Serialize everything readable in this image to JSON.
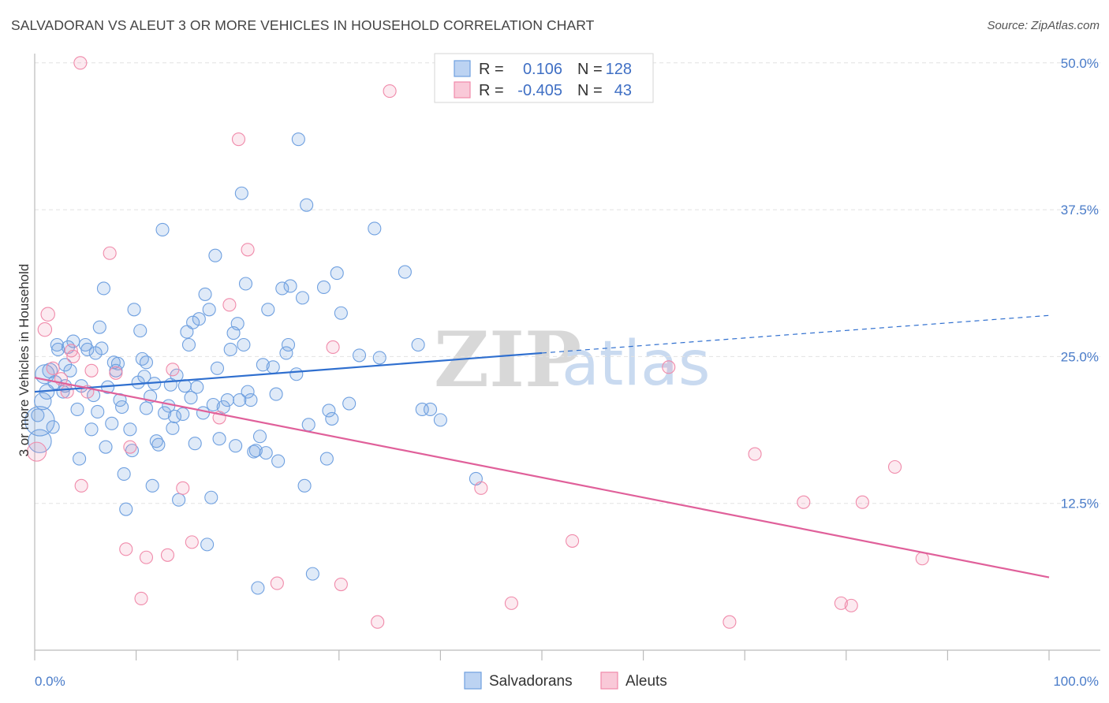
{
  "header": {
    "title": "SALVADORAN VS ALEUT 3 OR MORE VEHICLES IN HOUSEHOLD CORRELATION CHART",
    "source": "Source: ZipAtlas.com"
  },
  "legend": {
    "rows": [
      {
        "r_label": "R =",
        "r_value": "0.106",
        "n_label": "N =",
        "n_value": "128"
      },
      {
        "r_label": "R =",
        "r_value": "-0.405",
        "n_label": "N =",
        "n_value": "43"
      }
    ]
  },
  "watermark": {
    "part1": "ZIP",
    "part2": "atlas"
  },
  "chart_data": {
    "type": "scatter",
    "title": "SALVADORAN VS ALEUT 3 OR MORE VEHICLES IN HOUSEHOLD CORRELATION CHART",
    "xlabel": "",
    "ylabel": "3 or more Vehicles in Household",
    "xlim": [
      0,
      100
    ],
    "ylim": [
      0,
      52
    ],
    "x_tick_labels": [
      "0.0%",
      "100.0%"
    ],
    "y_ticks": [
      12.5,
      25.0,
      37.5,
      50.0
    ],
    "y_tick_labels": [
      "12.5%",
      "25.0%",
      "37.5%",
      "50.0%"
    ],
    "grid": true,
    "legend_position": "top-center",
    "colors": {
      "Salvadorans": "#6fa0e0",
      "Aleuts": "#f08aaa",
      "blue_line": "#2f6fcf",
      "pink_line": "#e0609a"
    },
    "series": [
      {
        "name": "Salvadorans",
        "trend": {
          "x0": 0,
          "y0": 22.0,
          "x1": 50,
          "y1": 25.3,
          "dashed_to_x": 100,
          "dashed_to_y": 28.5
        },
        "points": [
          [
            0.5,
            19.5
          ],
          [
            0.5,
            17.8
          ],
          [
            0.8,
            21.2
          ],
          [
            1.0,
            23.5
          ],
          [
            1.2,
            22.0
          ],
          [
            1.5,
            23.8
          ],
          [
            1.8,
            19.0
          ],
          [
            2.0,
            22.8
          ],
          [
            2.2,
            26.0
          ],
          [
            2.3,
            25.6
          ],
          [
            2.8,
            22.0
          ],
          [
            3.0,
            24.3
          ],
          [
            3.3,
            25.8
          ],
          [
            3.5,
            23.8
          ],
          [
            3.8,
            26.3
          ],
          [
            4.2,
            20.5
          ],
          [
            4.4,
            16.3
          ],
          [
            4.6,
            22.5
          ],
          [
            5.0,
            26.0
          ],
          [
            5.2,
            25.6
          ],
          [
            5.6,
            18.8
          ],
          [
            5.8,
            21.7
          ],
          [
            6.0,
            25.3
          ],
          [
            6.2,
            20.3
          ],
          [
            6.4,
            27.5
          ],
          [
            6.6,
            25.7
          ],
          [
            6.8,
            30.8
          ],
          [
            7.0,
            17.3
          ],
          [
            7.2,
            22.4
          ],
          [
            7.6,
            19.3
          ],
          [
            7.8,
            24.5
          ],
          [
            8.0,
            23.8
          ],
          [
            8.2,
            24.4
          ],
          [
            8.4,
            21.3
          ],
          [
            8.6,
            20.7
          ],
          [
            8.8,
            15.0
          ],
          [
            9.0,
            12.0
          ],
          [
            9.4,
            18.8
          ],
          [
            9.6,
            17.0
          ],
          [
            9.8,
            29.0
          ],
          [
            10.2,
            22.8
          ],
          [
            10.4,
            27.2
          ],
          [
            10.6,
            24.8
          ],
          [
            10.8,
            23.3
          ],
          [
            11.0,
            24.5
          ],
          [
            11.4,
            21.6
          ],
          [
            11.6,
            14.0
          ],
          [
            11.8,
            22.7
          ],
          [
            12.0,
            17.8
          ],
          [
            12.2,
            17.5
          ],
          [
            12.6,
            35.8
          ],
          [
            12.8,
            20.2
          ],
          [
            13.2,
            20.8
          ],
          [
            13.4,
            22.6
          ],
          [
            13.6,
            18.9
          ],
          [
            13.8,
            19.9
          ],
          [
            14.0,
            23.4
          ],
          [
            14.2,
            12.8
          ],
          [
            14.6,
            20.1
          ],
          [
            14.8,
            22.5
          ],
          [
            15.0,
            27.1
          ],
          [
            15.2,
            26.0
          ],
          [
            15.4,
            21.5
          ],
          [
            15.6,
            27.9
          ],
          [
            15.8,
            17.6
          ],
          [
            16.0,
            22.4
          ],
          [
            16.2,
            28.2
          ],
          [
            16.6,
            20.2
          ],
          [
            16.8,
            30.3
          ],
          [
            17.0,
            9.0
          ],
          [
            17.2,
            29.0
          ],
          [
            17.4,
            13.0
          ],
          [
            17.6,
            20.9
          ],
          [
            17.8,
            33.6
          ],
          [
            18.0,
            24.0
          ],
          [
            18.2,
            18.0
          ],
          [
            18.6,
            20.7
          ],
          [
            19.0,
            21.3
          ],
          [
            19.3,
            25.6
          ],
          [
            19.6,
            27.0
          ],
          [
            19.8,
            17.4
          ],
          [
            20.0,
            27.8
          ],
          [
            20.2,
            21.3
          ],
          [
            20.4,
            38.9
          ],
          [
            20.6,
            26.0
          ],
          [
            20.8,
            31.2
          ],
          [
            21.0,
            22.0
          ],
          [
            21.3,
            21.3
          ],
          [
            21.6,
            16.9
          ],
          [
            21.8,
            17.0
          ],
          [
            22.0,
            5.3
          ],
          [
            22.2,
            18.2
          ],
          [
            22.5,
            24.3
          ],
          [
            22.8,
            16.8
          ],
          [
            23.0,
            29.0
          ],
          [
            23.5,
            24.1
          ],
          [
            23.8,
            21.8
          ],
          [
            24.0,
            16.1
          ],
          [
            24.4,
            30.8
          ],
          [
            24.8,
            25.3
          ],
          [
            25.0,
            26.0
          ],
          [
            25.2,
            31.0
          ],
          [
            25.8,
            23.5
          ],
          [
            26.0,
            43.5
          ],
          [
            26.4,
            30.0
          ],
          [
            26.6,
            14.0
          ],
          [
            26.8,
            37.9
          ],
          [
            27.0,
            19.2
          ],
          [
            27.4,
            6.5
          ],
          [
            28.5,
            30.9
          ],
          [
            28.8,
            16.3
          ],
          [
            29.0,
            20.4
          ],
          [
            29.3,
            19.7
          ],
          [
            29.8,
            32.1
          ],
          [
            30.2,
            28.7
          ],
          [
            31.0,
            21.0
          ],
          [
            32.0,
            25.1
          ],
          [
            33.5,
            35.9
          ],
          [
            34.0,
            24.9
          ],
          [
            36.5,
            32.2
          ],
          [
            37.8,
            26.0
          ],
          [
            38.2,
            20.5
          ],
          [
            39.0,
            20.5
          ],
          [
            40.0,
            19.6
          ],
          [
            43.5,
            14.6
          ],
          [
            0.3,
            20.0
          ],
          [
            3.0,
            22.5
          ],
          [
            11.0,
            20.6
          ]
        ],
        "sizes": [
          28,
          22,
          16,
          18,
          14,
          14,
          12,
          13,
          12,
          12,
          12,
          12,
          12,
          12,
          12,
          12,
          12,
          12,
          12,
          12,
          12,
          12,
          12,
          12,
          12,
          12,
          12,
          12,
          12,
          12,
          12,
          12,
          12,
          12,
          12,
          12,
          12,
          12,
          12,
          12,
          12,
          12,
          12,
          12,
          12,
          12,
          12,
          12,
          12,
          12,
          12,
          12,
          12,
          12,
          12,
          12,
          12,
          12,
          12,
          12,
          12,
          12,
          12,
          12,
          12,
          12,
          12,
          12,
          12,
          12,
          12,
          12,
          12,
          12,
          12,
          12,
          12,
          12,
          12,
          12,
          12,
          12,
          12,
          12,
          12,
          12,
          12,
          12,
          12,
          12,
          12,
          12,
          12,
          12,
          12,
          12,
          12,
          12,
          12,
          12,
          12,
          12,
          12,
          12,
          12,
          12,
          12,
          12,
          12,
          12,
          12,
          12,
          12,
          12,
          12,
          12,
          12,
          12,
          12,
          12,
          12,
          12,
          12,
          12,
          12,
          12,
          12,
          12
        ]
      },
      {
        "name": "Aleuts",
        "trend": {
          "x0": 0,
          "y0": 23.2,
          "x1": 100,
          "y1": 6.2
        },
        "points": [
          [
            0.2,
            16.9
          ],
          [
            1.0,
            27.3
          ],
          [
            1.3,
            28.6
          ],
          [
            1.8,
            24.0
          ],
          [
            2.6,
            23.1
          ],
          [
            3.2,
            22.0
          ],
          [
            3.6,
            25.5
          ],
          [
            3.8,
            25.0
          ],
          [
            4.6,
            14.0
          ],
          [
            5.6,
            23.8
          ],
          [
            5.2,
            22.0
          ],
          [
            7.4,
            33.8
          ],
          [
            8.0,
            23.6
          ],
          [
            9.0,
            8.6
          ],
          [
            9.4,
            17.3
          ],
          [
            10.5,
            4.4
          ],
          [
            11.0,
            7.9
          ],
          [
            13.1,
            8.1
          ],
          [
            13.6,
            23.9
          ],
          [
            14.6,
            13.8
          ],
          [
            15.5,
            9.2
          ],
          [
            18.2,
            19.8
          ],
          [
            19.2,
            29.4
          ],
          [
            20.1,
            43.5
          ],
          [
            21.0,
            34.1
          ],
          [
            23.9,
            5.7
          ],
          [
            29.4,
            25.8
          ],
          [
            30.2,
            5.6
          ],
          [
            33.8,
            2.4
          ],
          [
            35.0,
            47.6
          ],
          [
            44.0,
            13.8
          ],
          [
            47.0,
            4.0
          ],
          [
            53.0,
            9.3
          ],
          [
            62.5,
            24.1
          ],
          [
            68.5,
            2.4
          ],
          [
            71.0,
            16.7
          ],
          [
            75.8,
            12.6
          ],
          [
            79.5,
            4.0
          ],
          [
            80.5,
            3.8
          ],
          [
            81.6,
            12.6
          ],
          [
            84.8,
            15.6
          ],
          [
            87.5,
            7.8
          ],
          [
            4.5,
            50.0
          ]
        ],
        "sizes": [
          18,
          13,
          13,
          12,
          12,
          12,
          12,
          12,
          12,
          12,
          12,
          12,
          12,
          12,
          12,
          12,
          12,
          12,
          12,
          12,
          12,
          12,
          12,
          12,
          12,
          12,
          12,
          12,
          12,
          12,
          12,
          12,
          12,
          12,
          12,
          12,
          12,
          12,
          12,
          12,
          12,
          12,
          12
        ]
      }
    ]
  },
  "bottom_legend": {
    "items": [
      "Salvadorans",
      "Aleuts"
    ]
  }
}
